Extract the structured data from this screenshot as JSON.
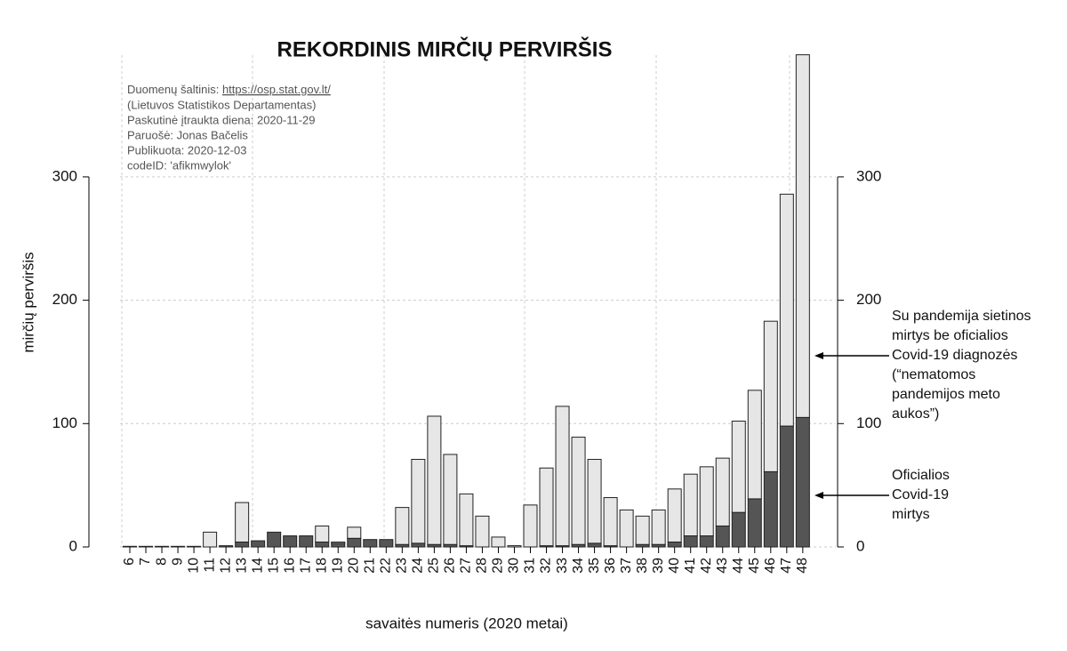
{
  "chart_data": {
    "type": "bar",
    "stacked": true,
    "title": "REKORDINIS MIRČIŲ PERVIRŠIS",
    "source_lines": [
      "Duomenų šaltinis: ",
      "https://osp.stat.gov.lt/",
      "(Lietuvos Statistikos Departamentas)",
      "Paskutinė įtraukta diena: 2020-11-29",
      "Paruošė: Jonas Bačelis",
      "Publikuota: 2020-12-03",
      "codeID: 'afikmwylok'"
    ],
    "ylabel": "mirčių perviršis",
    "xlabel": "savaitės numeris (2020 metai)",
    "annotations": [
      [
        "Su pandemija sietinos",
        "mirtys be oficialios",
        "Covid-19 diagnozės",
        "(“nematomos",
        "pandemijos meto",
        "aukos”)"
      ],
      [
        "Oficialios",
        "Covid-19",
        "mirtys"
      ]
    ],
    "categories": [
      "6",
      "7",
      "8",
      "9",
      "10",
      "11",
      "12",
      "13",
      "14",
      "15",
      "16",
      "17",
      "18",
      "19",
      "20",
      "21",
      "22",
      "23",
      "24",
      "25",
      "26",
      "27",
      "28",
      "29",
      "30",
      "31",
      "32",
      "33",
      "34",
      "35",
      "36",
      "37",
      "38",
      "39",
      "40",
      "41",
      "42",
      "43",
      "44",
      "45",
      "46",
      "47",
      "48"
    ],
    "series": [
      {
        "color": "#555555",
        "values": [
          0,
          0,
          0,
          0,
          0,
          0,
          1,
          4,
          5,
          12,
          9,
          9,
          4,
          3,
          7,
          6,
          6,
          2,
          3,
          2,
          2,
          1,
          0,
          0,
          0,
          0,
          1,
          1,
          2,
          3,
          1,
          0,
          2,
          2,
          4,
          9,
          9,
          17,
          28,
          39,
          61,
          98,
          105
        ]
      },
      {
        "color": "#e6e6e6",
        "values": [
          0.5,
          0.5,
          0.5,
          0.5,
          0.5,
          12,
          0,
          32,
          0,
          0,
          0,
          0,
          13,
          1,
          9,
          0,
          0,
          30,
          68,
          104,
          73,
          42,
          25,
          8,
          1,
          34,
          63,
          113,
          87,
          68,
          39,
          30,
          23,
          28,
          43,
          50,
          56,
          55,
          74,
          88,
          122,
          188,
          294
        ]
      }
    ],
    "ylim": [
      0,
      400
    ],
    "yticks": [
      0,
      100,
      200,
      300
    ],
    "y2lim": [
      0,
      400
    ],
    "y2ticks": [
      0,
      100,
      200,
      300
    ],
    "grid": true
  }
}
